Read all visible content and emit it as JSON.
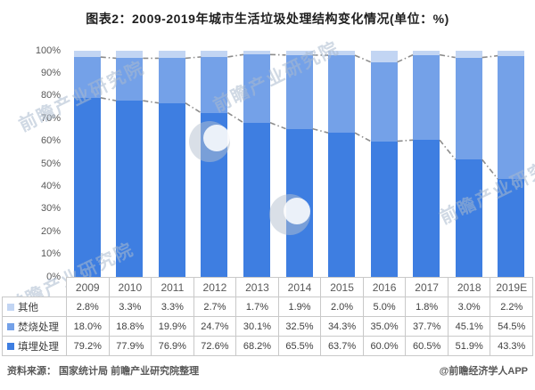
{
  "title": "图表2：2009-2019年城市生活垃圾处理结构变化情况(单位：%)",
  "chart_data": {
    "type": "bar",
    "stacked": true,
    "title": "图表2：2009-2019年城市生活垃圾处理结构变化情况(单位：%)",
    "unit": "%",
    "ylim": [
      0,
      100
    ],
    "grid": false,
    "y_ticks": [
      "100%",
      "90%",
      "80%",
      "70%",
      "60%",
      "50%",
      "40%",
      "30%",
      "20%",
      "10%",
      "0%"
    ],
    "categories": [
      "2009",
      "2010",
      "2011",
      "2012",
      "2013",
      "2014",
      "2015",
      "2016",
      "2017",
      "2018",
      "2019E"
    ],
    "series": [
      {
        "name": "填埋处理",
        "key": "landfill",
        "color": "#3E7EE1",
        "values": [
          79.2,
          77.9,
          76.9,
          72.6,
          68.2,
          65.5,
          63.7,
          60.0,
          60.5,
          51.9,
          43.3
        ]
      },
      {
        "name": "焚烧处理",
        "key": "incineration",
        "color": "#74A1E8",
        "values": [
          18.0,
          18.8,
          19.9,
          24.7,
          30.1,
          32.5,
          34.3,
          35.0,
          37.7,
          45.1,
          54.5
        ]
      },
      {
        "name": "其他",
        "key": "other",
        "color": "#C2D5F3",
        "values": [
          2.8,
          3.3,
          3.3,
          2.7,
          1.7,
          1.9,
          2.0,
          5.0,
          1.8,
          3.0,
          2.2
        ]
      }
    ],
    "series_lines": {
      "style": "dash-dot",
      "color": "#8C8C8C",
      "note": "gray dashed connector lines between bars at the top of 填埋处理 segment and at 填埋处理+焚烧处理 cumulative level",
      "boundary1_values": [
        79.2,
        77.9,
        76.9,
        72.6,
        68.2,
        65.5,
        63.7,
        60.0,
        60.5,
        51.9,
        43.3
      ],
      "boundary2_values": [
        97.2,
        96.7,
        96.7,
        97.3,
        98.3,
        98.1,
        98.0,
        95.0,
        98.2,
        97.0,
        97.8
      ]
    },
    "legend_position": "table-left"
  },
  "table": {
    "rows": [
      {
        "label": "其他",
        "color": "#C2D5F3",
        "values": [
          "2.8%",
          "3.3%",
          "3.3%",
          "2.7%",
          "1.7%",
          "1.9%",
          "2.0%",
          "5.0%",
          "1.8%",
          "3.0%",
          "2.2%"
        ]
      },
      {
        "label": "焚烧处理",
        "color": "#74A1E8",
        "values": [
          "18.0%",
          "18.8%",
          "19.9%",
          "24.7%",
          "30.1%",
          "32.5%",
          "34.3%",
          "35.0%",
          "37.7%",
          "45.1%",
          "54.5%"
        ]
      },
      {
        "label": "填埋处理",
        "color": "#3E7EE1",
        "values": [
          "79.2%",
          "77.9%",
          "76.9%",
          "72.6%",
          "68.2%",
          "65.5%",
          "63.7%",
          "60.0%",
          "60.5%",
          "51.9%",
          "43.3%"
        ]
      }
    ]
  },
  "footer": {
    "source": "资料来源： 国家统计局 前瞻产业研究院整理",
    "credit": "@前瞻经济学人APP"
  },
  "watermark": {
    "text": "前瞻产业研究院"
  }
}
